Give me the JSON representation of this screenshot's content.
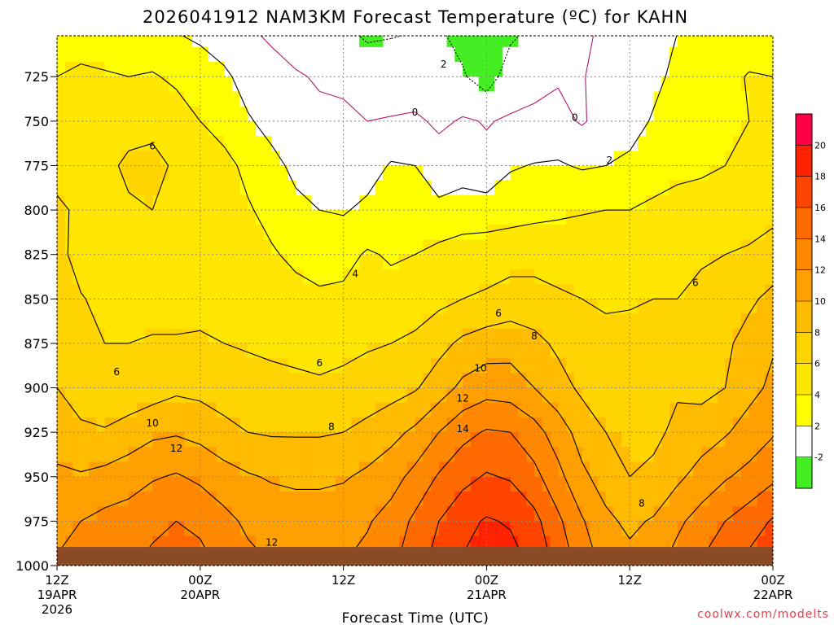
{
  "chart_data": {
    "type": "heatmap",
    "title": "2026041912 NAM3KM Forecast Temperature (ºC) for KAHN",
    "xlabel": "Forecast Time (UTC)",
    "ylabel": "",
    "credit": "coolwx.com/modelts",
    "x_ticks": [
      {
        "hour": 0,
        "label": "12Z",
        "sub1": "19APR",
        "sub2": "2026"
      },
      {
        "hour": 12,
        "label": "00Z",
        "sub1": "20APR",
        "sub2": ""
      },
      {
        "hour": 24,
        "label": "12Z",
        "sub1": "",
        "sub2": ""
      },
      {
        "hour": 36,
        "label": "00Z",
        "sub1": "21APR",
        "sub2": ""
      },
      {
        "hour": 48,
        "label": "12Z",
        "sub1": "",
        "sub2": ""
      },
      {
        "hour": 60,
        "label": "00Z",
        "sub1": "22APR",
        "sub2": ""
      }
    ],
    "xlim": [
      0,
      60
    ],
    "y_ticks": [
      725,
      750,
      775,
      800,
      825,
      850,
      875,
      900,
      925,
      950,
      975,
      1000
    ],
    "ylim_hpa": [
      702,
      1000
    ],
    "ground_color": "#8b4a26",
    "colorbar": {
      "boundaries": [
        -4,
        -2,
        2,
        4,
        6,
        8,
        10,
        12,
        14,
        16,
        18,
        20,
        22
      ],
      "tick_labels": [
        "-2",
        "2",
        "4",
        "6",
        "8",
        "10",
        "12",
        "14",
        "16",
        "18",
        "20"
      ],
      "colors": [
        "#44ee22",
        "#ffffff",
        "#ffff00",
        "#ffe600",
        "#ffd400",
        "#ffbb00",
        "#ffa000",
        "#ff8800",
        "#ff6a00",
        "#ff4400",
        "#ff2200",
        "#ff0044"
      ]
    },
    "time_hours": [
      0,
      2,
      4,
      6,
      8,
      10,
      12,
      14,
      16,
      18,
      20,
      22,
      24,
      26,
      28,
      30,
      32,
      34,
      36,
      38,
      40,
      42,
      44,
      46,
      48,
      50,
      52,
      54,
      56,
      58,
      60
    ],
    "levels_hpa": [
      700,
      725,
      750,
      775,
      800,
      825,
      850,
      875,
      900,
      925,
      950,
      975,
      1000
    ],
    "temperature_c": [
      [
        3.2,
        3.0,
        2.8,
        2.6,
        2.4,
        2.0,
        1.5,
        0.8,
        0.2,
        -0.3,
        -1.0,
        -2.0,
        -1.5,
        -2.5,
        -2.2,
        -2.0,
        -1.8,
        -2.6,
        -3.2,
        -2.4,
        -1.6,
        -1.0,
        -0.5,
        0.5,
        1.0,
        1.5,
        2.0,
        2.5,
        3.0,
        3.2,
        3.4
      ],
      [
        4.0,
        4.4,
        4.2,
        4.0,
        4.2,
        3.6,
        3.2,
        2.4,
        1.2,
        0.6,
        0.2,
        -0.2,
        -0.2,
        -0.4,
        -0.8,
        -1.5,
        -1.2,
        -1.8,
        -3.0,
        -1.0,
        -0.6,
        -0.2,
        -0.1,
        0.6,
        1.0,
        1.5,
        2.5,
        3.3,
        3.6,
        4.1,
        4.0
      ],
      [
        4.5,
        5.0,
        5.2,
        5.4,
        5.6,
        5.0,
        4.0,
        3.2,
        2.2,
        1.4,
        0.8,
        0.4,
        0.2,
        0.0,
        0.1,
        0.4,
        -0.4,
        0.2,
        -0.1,
        0.2,
        0.4,
        0.6,
        -0.2,
        0.8,
        1.2,
        2.2,
        3.0,
        3.4,
        3.8,
        4.0,
        4.4
      ],
      [
        5.6,
        5.4,
        5.6,
        6.3,
        6.4,
        5.8,
        5.3,
        4.6,
        3.5,
        2.5,
        1.6,
        0.8,
        0.6,
        1.0,
        2.2,
        2.0,
        1.0,
        1.2,
        0.4,
        1.8,
        2.1,
        2.2,
        1.8,
        2.0,
        2.4,
        3.0,
        3.4,
        3.6,
        4.0,
        4.2,
        4.6
      ],
      [
        6.2,
        5.8,
        5.4,
        5.8,
        6.0,
        5.6,
        5.2,
        4.8,
        4.2,
        3.4,
        2.4,
        2.0,
        1.8,
        2.5,
        2.8,
        3.0,
        2.4,
        2.8,
        3.0,
        3.2,
        3.4,
        3.6,
        3.8,
        4.0,
        4.0,
        4.4,
        4.8,
        5.0,
        5.2,
        5.3,
        5.6
      ],
      [
        6.5,
        5.4,
        5.6,
        5.9,
        5.8,
        5.4,
        5.2,
        5.0,
        4.6,
        4.2,
        3.6,
        3.0,
        3.4,
        4.2,
        3.8,
        4.0,
        4.6,
        5.0,
        5.0,
        5.2,
        5.4,
        5.4,
        5.6,
        5.6,
        5.4,
        5.6,
        5.8,
        5.9,
        6.0,
        6.2,
        6.6
      ],
      [
        7.2,
        6.1,
        5.6,
        5.7,
        5.6,
        5.6,
        5.5,
        5.3,
        5.0,
        4.8,
        4.6,
        4.4,
        4.4,
        4.8,
        4.6,
        5.0,
        5.5,
        6.0,
        6.3,
        6.8,
        6.6,
        6.2,
        6.0,
        5.8,
        5.8,
        6.0,
        6.0,
        6.2,
        6.8,
        7.6,
        8.6
      ],
      [
        7.8,
        6.4,
        6.0,
        6.0,
        6.1,
        6.1,
        6.2,
        6.0,
        5.8,
        5.6,
        5.5,
        5.5,
        5.6,
        5.8,
        6.0,
        6.4,
        7.4,
        8.4,
        9.0,
        9.2,
        8.6,
        7.6,
        6.8,
        6.4,
        6.6,
        7.2,
        7.6,
        6.8,
        7.6,
        8.8,
        9.8
      ],
      [
        8.0,
        7.0,
        6.4,
        6.4,
        7.0,
        7.6,
        7.4,
        7.0,
        6.8,
        6.6,
        6.4,
        6.2,
        6.4,
        6.8,
        7.2,
        7.8,
        9.0,
        10.5,
        11.2,
        11.0,
        10.0,
        8.8,
        7.6,
        7.0,
        7.0,
        7.4,
        7.8,
        7.4,
        8.0,
        9.4,
        10.4
      ],
      [
        9.0,
        8.4,
        8.2,
        9.0,
        9.6,
        9.8,
        9.4,
        8.6,
        8.0,
        7.8,
        7.8,
        7.8,
        8.0,
        8.6,
        9.4,
        10.4,
        12.0,
        13.4,
        14.2,
        14.0,
        12.8,
        11.0,
        9.2,
        8.0,
        7.8,
        7.6,
        8.4,
        9.0,
        9.8,
        10.8,
        11.8
      ],
      [
        10.4,
        10.2,
        10.6,
        11.0,
        11.8,
        12.2,
        11.6,
        10.8,
        10.2,
        9.8,
        9.6,
        9.6,
        9.8,
        10.4,
        11.2,
        12.6,
        14.2,
        15.4,
        16.2,
        15.8,
        14.6,
        12.6,
        10.4,
        9.2,
        8.0,
        8.4,
        9.6,
        10.8,
        11.8,
        12.6,
        13.6
      ],
      [
        11.4,
        12.0,
        12.6,
        13.0,
        13.6,
        14.0,
        13.6,
        12.6,
        11.6,
        11.2,
        11.0,
        11.0,
        11.2,
        11.8,
        12.8,
        14.4,
        16.0,
        17.4,
        18.2,
        17.8,
        16.6,
        14.4,
        12.2,
        10.4,
        9.6,
        10.2,
        11.6,
        12.8,
        14.0,
        15.0,
        16.2
      ],
      [
        12.2,
        12.8,
        13.4,
        13.8,
        14.4,
        15.0,
        14.6,
        13.6,
        12.6,
        12.0,
        11.8,
        11.8,
        12.0,
        12.6,
        13.6,
        15.2,
        16.8,
        18.2,
        19.2,
        18.8,
        17.6,
        15.4,
        13.2,
        11.4,
        10.6,
        11.4,
        12.8,
        14.2,
        15.6,
        16.6,
        17.6
      ]
    ],
    "contour_levels": [
      -2,
      0,
      2,
      4,
      6,
      8,
      10,
      12,
      14,
      16,
      18,
      20
    ],
    "contour_labels": [
      {
        "value": "2",
        "hour": 32.4,
        "hpa": 718
      },
      {
        "value": "0",
        "hour": 30.0,
        "hpa": 745
      },
      {
        "value": "0",
        "hour": 43.4,
        "hpa": 748
      },
      {
        "value": "2",
        "hour": 46.3,
        "hpa": 772
      },
      {
        "value": "6",
        "hour": 8.0,
        "hpa": 764
      },
      {
        "value": "4",
        "hour": 25.0,
        "hpa": 836
      },
      {
        "value": "6",
        "hour": 37.0,
        "hpa": 858
      },
      {
        "value": "6",
        "hour": 53.5,
        "hpa": 841
      },
      {
        "value": "8",
        "hour": 40.0,
        "hpa": 871
      },
      {
        "value": "6",
        "hour": 22.0,
        "hpa": 886
      },
      {
        "value": "6",
        "hour": 5.0,
        "hpa": 891
      },
      {
        "value": "10",
        "hour": 35.5,
        "hpa": 889
      },
      {
        "value": "12",
        "hour": 34.0,
        "hpa": 906
      },
      {
        "value": "8",
        "hour": 23.0,
        "hpa": 922
      },
      {
        "value": "10",
        "hour": 8.0,
        "hpa": 920
      },
      {
        "value": "14",
        "hour": 34.0,
        "hpa": 923
      },
      {
        "value": "12",
        "hour": 10.0,
        "hpa": 934
      },
      {
        "value": "8",
        "hour": 49.0,
        "hpa": 965
      },
      {
        "value": "12",
        "hour": 18.0,
        "hpa": 987
      }
    ]
  }
}
